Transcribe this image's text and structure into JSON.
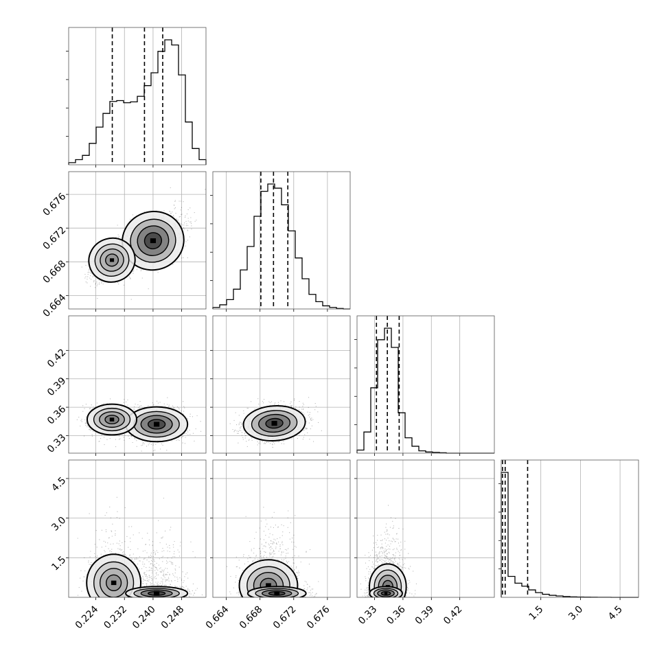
{
  "chart_data": {
    "type": "corner",
    "title": "",
    "parameters": [
      {
        "label": "",
        "range": [
          0.2164,
          0.2548
        ],
        "ticks": [
          "0.224",
          "0.232",
          "0.240",
          "0.248"
        ],
        "tick_values": [
          0.224,
          0.232,
          0.24,
          0.248
        ],
        "quantiles": [
          0.2286,
          0.2376,
          0.2427
        ]
      },
      {
        "label": "",
        "range": [
          0.6624,
          0.6787
        ],
        "ticks": [
          "0.664",
          "0.668",
          "0.672",
          "0.676"
        ],
        "tick_values": [
          0.664,
          0.668,
          0.672,
          0.676
        ],
        "quantiles": [
          0.6681,
          0.6696,
          0.6713
        ]
      },
      {
        "label": "",
        "range": [
          0.3115,
          0.4565
        ],
        "ticks": [
          "0.33",
          "0.36",
          "0.39",
          "0.42"
        ],
        "tick_values": [
          0.33,
          0.36,
          0.39,
          0.42
        ],
        "quantiles": [
          0.332,
          0.3435,
          0.356
        ]
      },
      {
        "label": "",
        "range": [
          0.0,
          5.2
        ],
        "ticks": [
          "1.5",
          "3.0",
          "4.5"
        ],
        "tick_values": [
          1.5,
          3.0,
          4.5
        ],
        "quantiles": [
          0.05,
          0.15,
          1.0
        ]
      }
    ],
    "histograms": [
      {
        "param": 0,
        "edges_start": 0.2164,
        "bin_width": 0.00192,
        "counts": [
          5,
          12,
          22,
          50,
          88,
          120,
          148,
          150,
          145,
          147,
          160,
          185,
          215,
          265,
          292,
          280,
          210,
          100,
          38,
          12
        ]
      },
      {
        "param": 1,
        "edges_start": 0.6624,
        "bin_width": 0.000815,
        "counts": [
          3,
          8,
          18,
          38,
          75,
          120,
          178,
          226,
          240,
          232,
          200,
          150,
          98,
          58,
          28,
          14,
          6,
          3,
          1,
          0
        ]
      },
      {
        "param": 2,
        "edges_start": 0.3115,
        "bin_width": 0.00725,
        "counts": [
          8,
          55,
          170,
          295,
          325,
          275,
          105,
          40,
          18,
          6,
          3,
          2,
          1,
          0,
          0,
          0,
          0,
          0,
          0,
          0
        ]
      },
      {
        "param": 3,
        "edges_start": 0.0,
        "bin_width": 0.26,
        "counts": [
          1850,
          310,
          210,
          165,
          110,
          70,
          45,
          30,
          20,
          12,
          8,
          5,
          3,
          2,
          1,
          1,
          0,
          0,
          0,
          0
        ]
      }
    ],
    "pairs": [
      {
        "x": 0,
        "y": 1,
        "cov": 0.55,
        "modes": [
          {
            "x": 0.24,
            "y": 0.6705,
            "w": 0.65,
            "sx": 0.004,
            "sy": 0.0016
          },
          {
            "x": 0.2285,
            "y": 0.6682,
            "w": 0.35,
            "sx": 0.003,
            "sy": 0.0012
          }
        ]
      },
      {
        "x": 0,
        "y": 2,
        "modes": [
          {
            "x": 0.241,
            "y": 0.342,
            "w": 0.6,
            "sx": 0.004,
            "sy": 0.0085
          },
          {
            "x": 0.2285,
            "y": 0.347,
            "w": 0.4,
            "sx": 0.0032,
            "sy": 0.0075
          }
        ]
      },
      {
        "x": 1,
        "y": 2,
        "cov": 0.2,
        "modes": [
          {
            "x": 0.6697,
            "y": 0.343,
            "w": 1.0,
            "sx": 0.0017,
            "sy": 0.0085
          }
        ]
      },
      {
        "x": 0,
        "y": 3,
        "modes": [
          {
            "x": 0.229,
            "y": 0.55,
            "w": 0.35,
            "sx": 0.0035,
            "sy": 0.5
          },
          {
            "x": 0.241,
            "y": 0.15,
            "w": 0.65,
            "sx": 0.004,
            "sy": 0.12
          }
        ]
      },
      {
        "x": 1,
        "y": 3,
        "modes": [
          {
            "x": 0.669,
            "y": 0.45,
            "w": 0.4,
            "sx": 0.0016,
            "sy": 0.45
          },
          {
            "x": 0.67,
            "y": 0.15,
            "w": 0.6,
            "sx": 0.0016,
            "sy": 0.12
          }
        ]
      },
      {
        "x": 2,
        "y": 3,
        "modes": [
          {
            "x": 0.344,
            "y": 0.4,
            "w": 0.4,
            "sx": 0.009,
            "sy": 0.4
          },
          {
            "x": 0.342,
            "y": 0.15,
            "w": 0.6,
            "sx": 0.008,
            "sy": 0.12
          }
        ]
      }
    ],
    "grid": true,
    "quantile_line_style": "dashed",
    "colors": {
      "hist": "#000000",
      "scatter": "#000000",
      "contour": "#000000",
      "grid": "#b0b0b0",
      "background": "#ffffff"
    }
  }
}
